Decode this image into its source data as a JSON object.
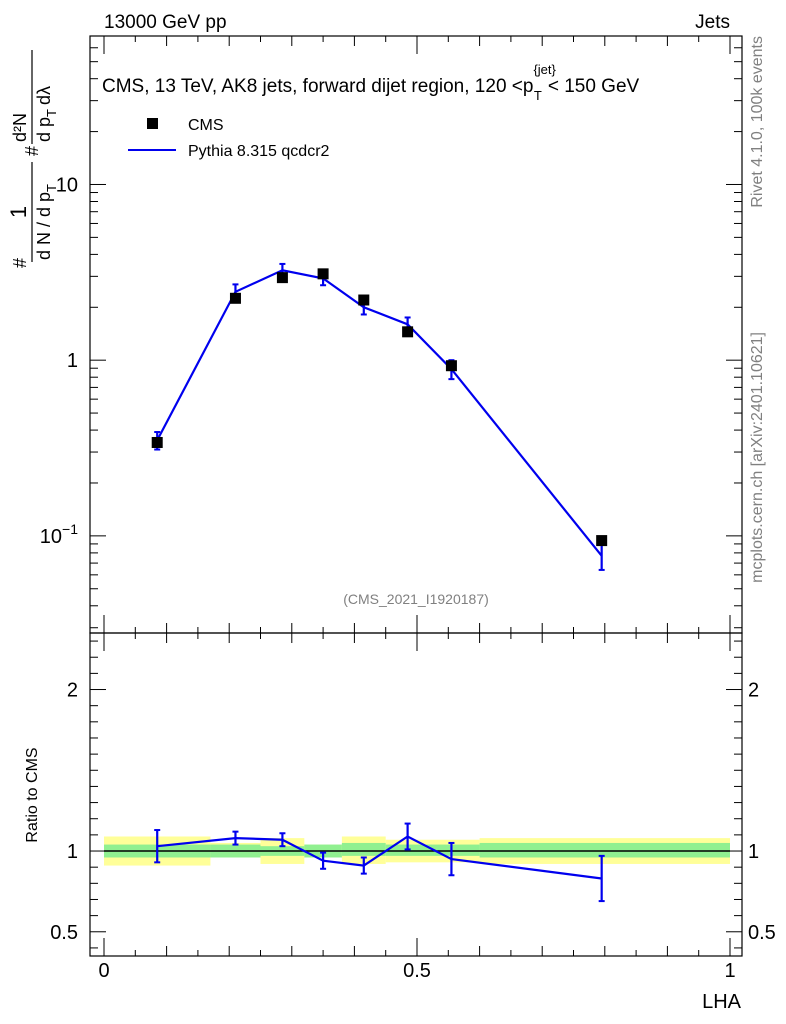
{
  "header": {
    "left": "13000 GeV pp",
    "right": "Jets"
  },
  "side_labels": {
    "rivet": "Rivet 4.1.0,  100k events",
    "mcplots": "mcplots.cern.ch [arXiv:2401.10621]"
  },
  "watermark": "(CMS_2021_I1920187)",
  "colors": {
    "mc_line": "#0000ee",
    "data_marker": "#000000",
    "band_inner": "#90f090",
    "band_outer": "#ffff99"
  },
  "chart_data": [
    {
      "type": "scatter+line",
      "panel": "main",
      "title": "CMS, 13 TeV, AK8 jets, forward dijet region, 120 <p_T^{jet}< 150 GeV",
      "title_parts": {
        "prefix": "CMS, 13 TeV, AK8 jets, forward dijet region, 120 <p",
        "sup": "{jet}",
        "sub": "T",
        "suffix": "< 150 GeV"
      },
      "ylabel": "1/(dN/dp_T) d²N/(dp_T dλ)",
      "ylabel_parts": {
        "hash": "#",
        "one": "1",
        "dn": "d N / d p",
        "t": "T",
        "d2n": "d²N",
        "dp": "d p",
        "dl": "dλ"
      },
      "xlabel": "LHA",
      "yscale": "log",
      "xlim": [
        0,
        1
      ],
      "ylim": [
        0.028,
        70
      ],
      "ytick_labels": [
        {
          "value": 0.1,
          "base": "10",
          "exp": "−1"
        },
        {
          "value": 1,
          "base": "1",
          "exp": ""
        },
        {
          "value": 10,
          "base": "10",
          "exp": ""
        }
      ],
      "legend": {
        "position": "top-left",
        "entries": [
          "CMS",
          "Pythia 8.315 qcdcr2"
        ]
      },
      "series": [
        {
          "name": "CMS",
          "style": "marker",
          "x": [
            0.085,
            0.21,
            0.285,
            0.35,
            0.415,
            0.485,
            0.555,
            0.795
          ],
          "values": [
            0.34,
            2.25,
            2.95,
            3.1,
            2.2,
            1.45,
            0.93,
            0.094
          ]
        },
        {
          "name": "Pythia 8.315 qcdcr2",
          "style": "line",
          "x": [
            0.085,
            0.21,
            0.285,
            0.35,
            0.415,
            0.485,
            0.555,
            0.795
          ],
          "values": [
            0.35,
            2.45,
            3.25,
            2.92,
            2.0,
            1.6,
            0.89,
            0.077
          ],
          "err_low": [
            0.04,
            0.25,
            0.28,
            0.25,
            0.18,
            0.15,
            0.11,
            0.013
          ],
          "err_high": [
            0.04,
            0.25,
            0.28,
            0.25,
            0.18,
            0.15,
            0.11,
            0.013
          ]
        }
      ]
    },
    {
      "type": "ratio",
      "panel": "ratio",
      "ylabel": "Ratio to CMS",
      "xlabel": "LHA",
      "xlim": [
        0,
        1
      ],
      "ylim": [
        0.35,
        2.35
      ],
      "ytick_labels": [
        "0.5",
        "1",
        "2"
      ],
      "ytick_values": [
        0.5,
        1,
        2
      ],
      "xtick_labels": [
        "0",
        "0.5",
        "1"
      ],
      "xtick_values": [
        0,
        0.5,
        1
      ],
      "reference_line": 1,
      "bands": {
        "edges": [
          0,
          0.17,
          0.25,
          0.32,
          0.38,
          0.45,
          0.6,
          1.0
        ],
        "inner_low": [
          0.96,
          0.96,
          0.97,
          0.96,
          0.97,
          0.97,
          0.96
        ],
        "inner_high": [
          1.04,
          1.04,
          1.03,
          1.04,
          1.05,
          1.04,
          1.05
        ],
        "outer_low": [
          0.91,
          0.96,
          0.92,
          0.96,
          0.92,
          0.93,
          0.92
        ],
        "outer_high": [
          1.09,
          1.05,
          1.08,
          1.04,
          1.09,
          1.07,
          1.08
        ]
      },
      "series": [
        {
          "name": "Pythia 8.315 qcdcr2 / CMS",
          "x": [
            0.085,
            0.21,
            0.285,
            0.35,
            0.415,
            0.485,
            0.555,
            0.795
          ],
          "values": [
            1.03,
            1.08,
            1.07,
            0.94,
            0.91,
            1.09,
            0.95,
            0.83
          ],
          "err": [
            0.1,
            0.04,
            0.04,
            0.05,
            0.05,
            0.08,
            0.1,
            0.14
          ]
        }
      ]
    }
  ]
}
